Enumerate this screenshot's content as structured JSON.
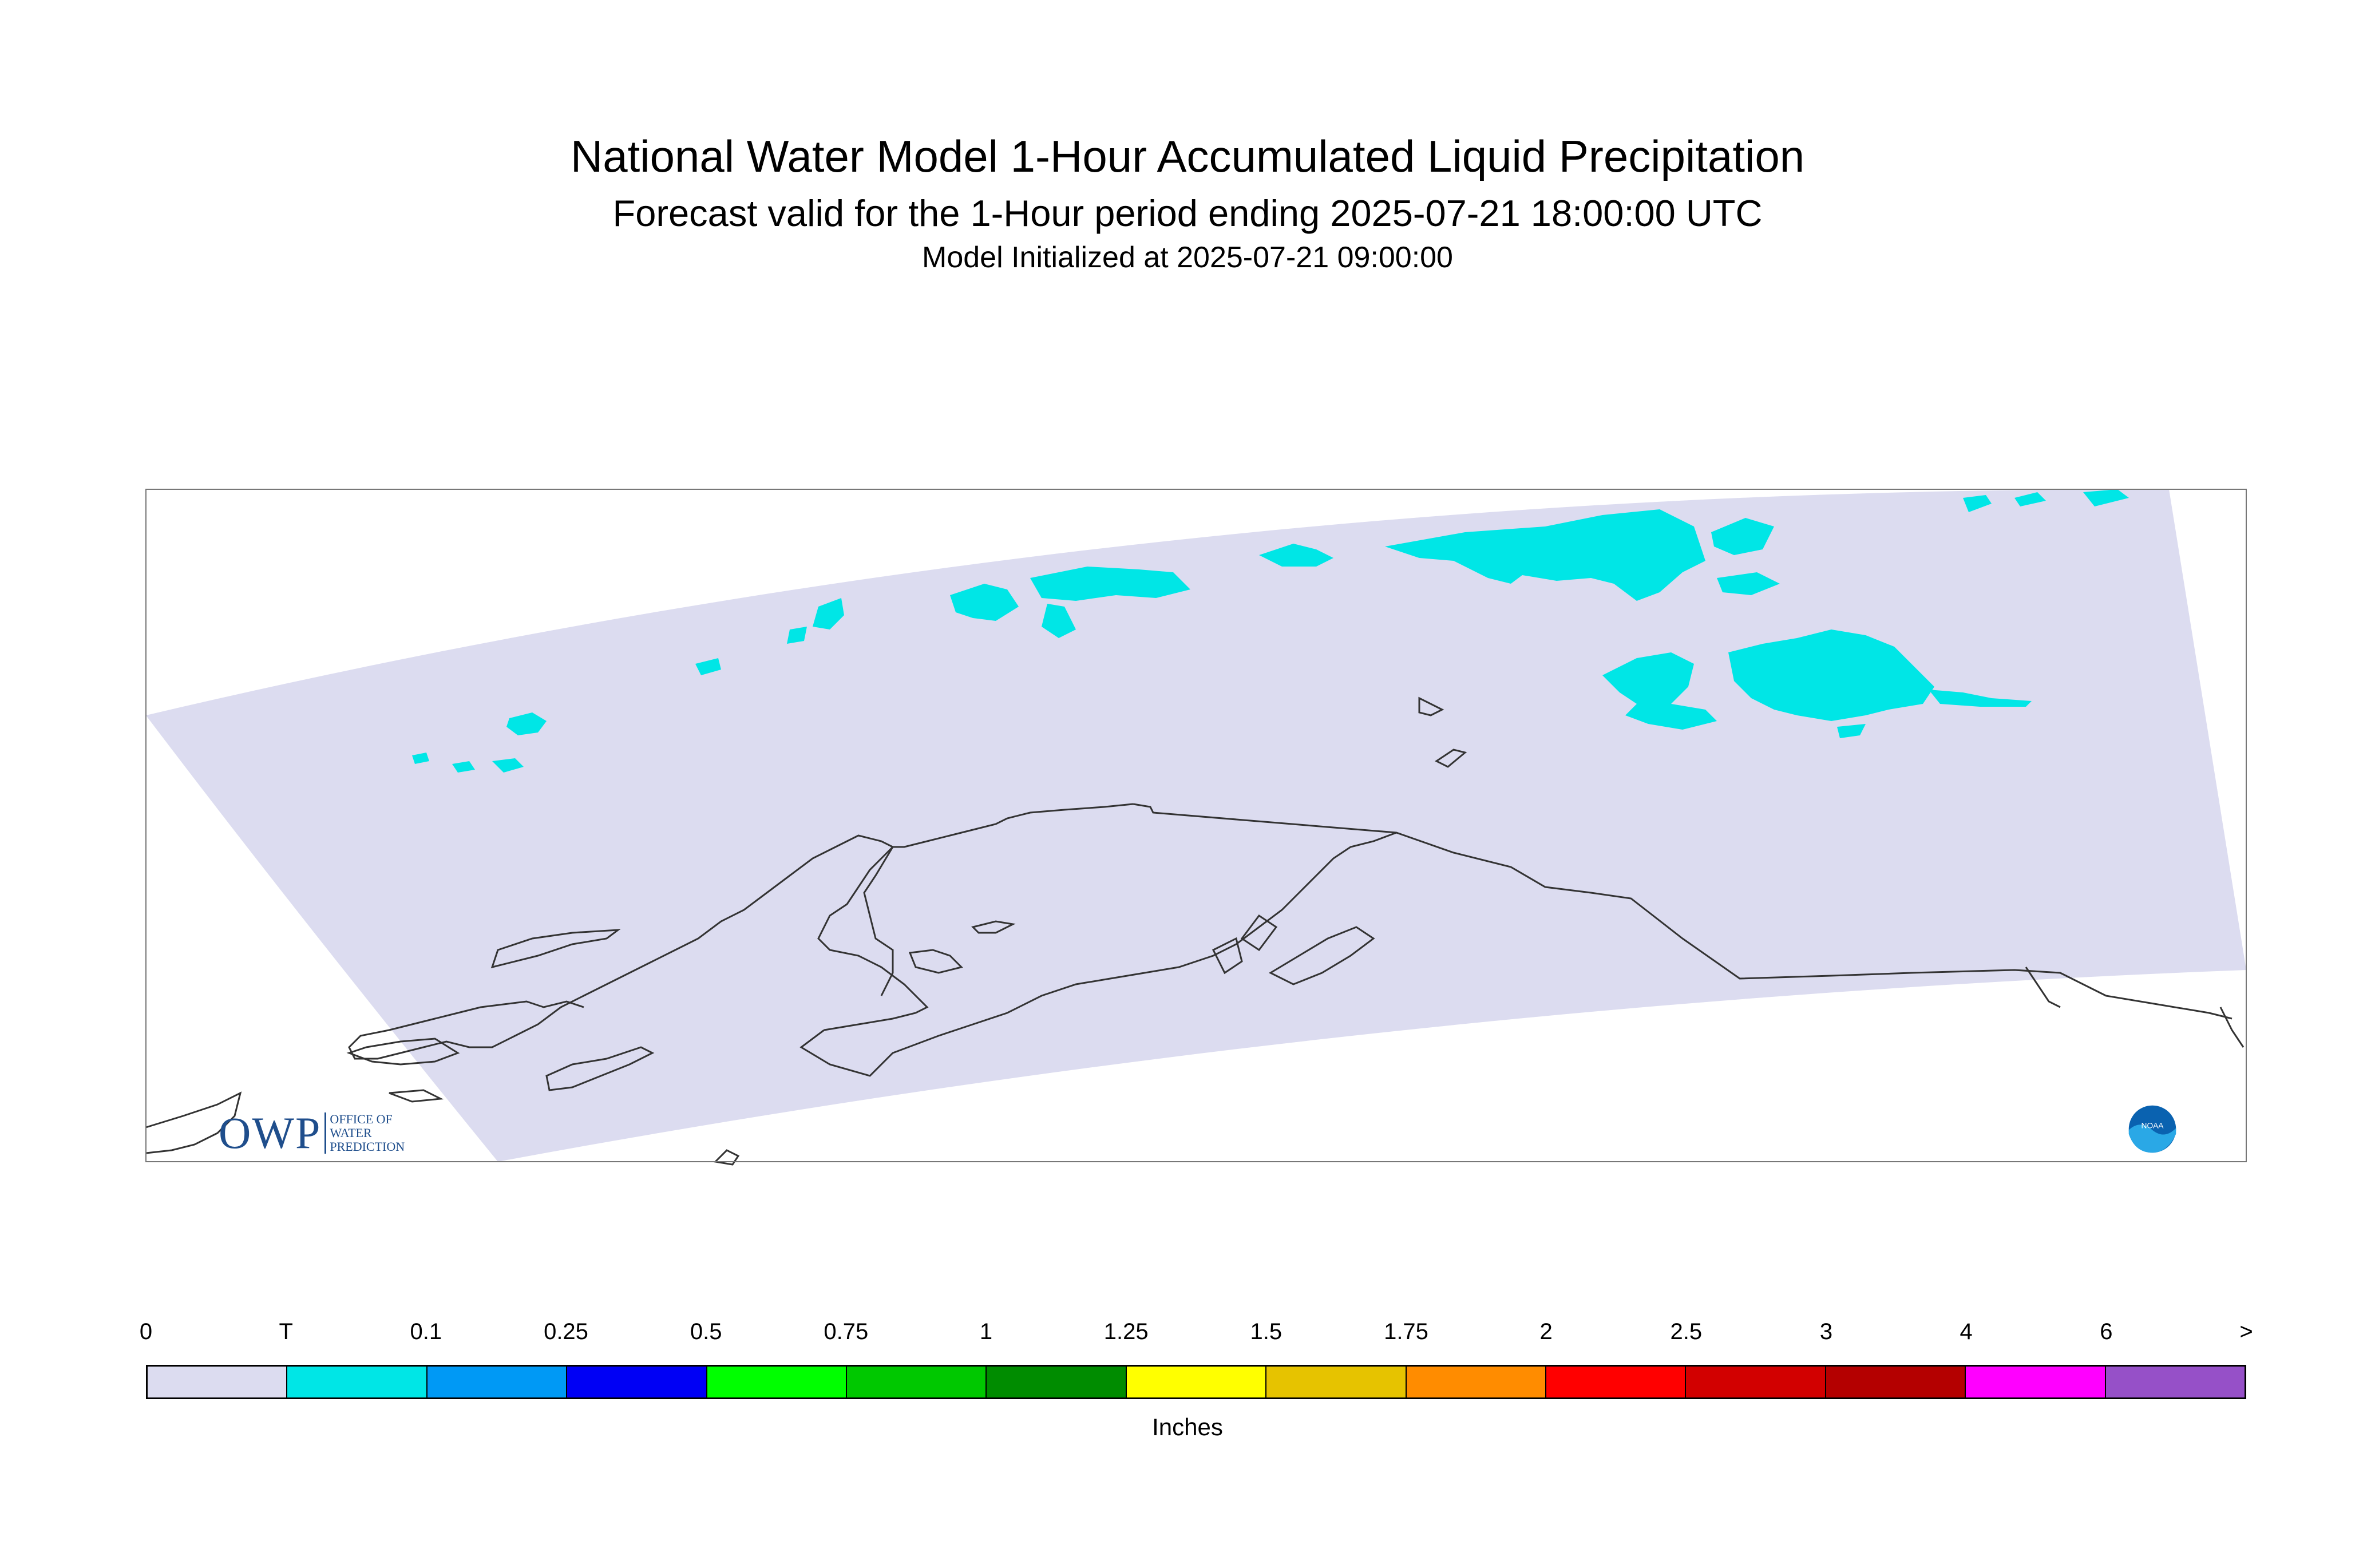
{
  "header": {
    "title": "National Water Model 1-Hour Accumulated Liquid Precipitation",
    "subtitle": "Forecast valid for the 1-Hour period ending 2025-07-21 18:00:00 UTC",
    "initialized": "Model Initialized at 2025-07-21 09:00:00"
  },
  "legend": {
    "units": "Inches",
    "ticks": [
      "0",
      "T",
      "0.1",
      "0.25",
      "0.5",
      "0.75",
      "1",
      "1.25",
      "1.5",
      "1.75",
      "2",
      "2.5",
      "3",
      "4",
      "6",
      ">"
    ],
    "colors": [
      "#dcdcf0",
      "#00e6e6",
      "#0099f5",
      "#0000f5",
      "#00ff00",
      "#00c800",
      "#008c00",
      "#ffff00",
      "#e6c300",
      "#ff8c00",
      "#ff0000",
      "#d20000",
      "#b40000",
      "#ff00ff",
      "#9650c8"
    ]
  },
  "map": {
    "domain_fill": "#dcdcf0",
    "precip_color": "#00e6e6",
    "coastline_color": "#333333"
  },
  "logos": {
    "owp": {
      "mark": "OWP",
      "lines": [
        "OFFICE OF",
        "WATER",
        "PREDICTION"
      ]
    },
    "noaa": "NOAA"
  }
}
